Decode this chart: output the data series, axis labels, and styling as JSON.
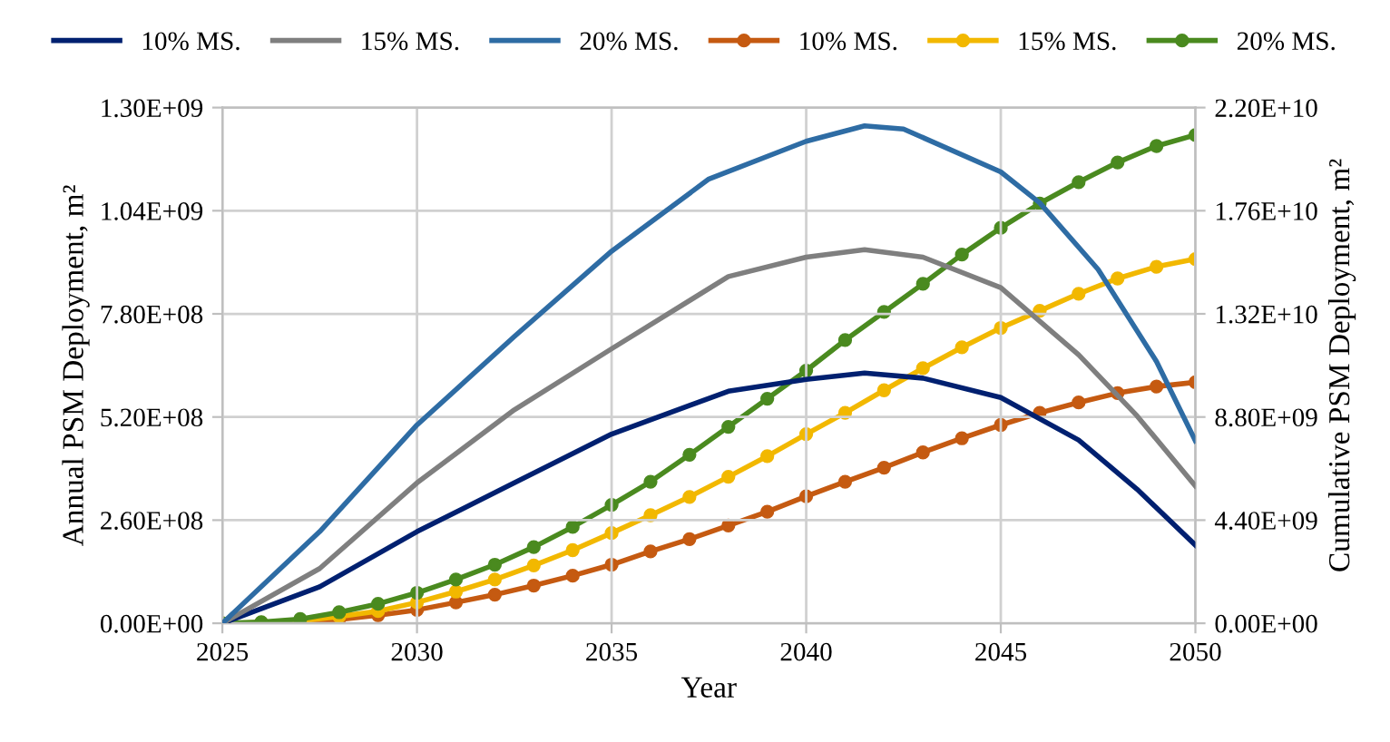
{
  "chart_data": {
    "type": "line",
    "xlabel": "Year",
    "ylabel": "Annual PSM Deployment, m²",
    "y2label": "Cumulative PSM Deployment, m²",
    "xlim": [
      2025,
      2050
    ],
    "xticks": [
      2025,
      2030,
      2035,
      2040,
      2045,
      2050
    ],
    "ylim": [
      0,
      1300000000
    ],
    "yticks": [
      {
        "value": 0,
        "label": "0.00E+00"
      },
      {
        "value": 260000000,
        "label": "2.60E+08"
      },
      {
        "value": 520000000,
        "label": "5.20E+08"
      },
      {
        "value": 780000000,
        "label": "7.80E+08"
      },
      {
        "value": 1040000000,
        "label": "1.04E+09"
      },
      {
        "value": 1300000000,
        "label": "1.30E+09"
      }
    ],
    "y2lim": [
      0,
      22000000000
    ],
    "y2ticks": [
      {
        "value": 0,
        "label": "0.00E+00"
      },
      {
        "value": 4400000000,
        "label": "4.40E+09"
      },
      {
        "value": 8800000000,
        "label": "8.80E+09"
      },
      {
        "value": 13200000000,
        "label": "1.32E+10"
      },
      {
        "value": 17600000000,
        "label": "1.76E+10"
      },
      {
        "value": 22000000000,
        "label": "2.20E+10"
      }
    ],
    "grid": true,
    "legend": "top",
    "series": [
      {
        "name": "10% MS.",
        "color": "#002070",
        "x": [
          2025,
          2027.5,
          2030,
          2032.5,
          2035,
          2038,
          2040,
          2041.5,
          2043,
          2045,
          2047,
          2048.5,
          2050
        ],
        "values": [
          0,
          92000000,
          231000000,
          354000000,
          477000000,
          585000000,
          615000000,
          631000000,
          618000000,
          569000000,
          462000000,
          338000000,
          197000000
        ]
      },
      {
        "name": "15% MS.",
        "color": "#7f7f7f",
        "x": [
          2025,
          2027.5,
          2030,
          2032.5,
          2035,
          2038,
          2040,
          2041.5,
          2043,
          2045,
          2047,
          2048.5,
          2050
        ],
        "values": [
          0,
          138000000,
          354000000,
          538000000,
          692000000,
          874000000,
          923000000,
          942000000,
          923000000,
          846000000,
          677000000,
          523000000,
          346000000
        ]
      },
      {
        "name": "20% MS.",
        "color": "#2e6ca4",
        "x": [
          2025,
          2027.5,
          2030,
          2032.5,
          2035,
          2037.5,
          2040,
          2041.5,
          2042.5,
          2045,
          2046,
          2047.5,
          2049,
          2050
        ],
        "values": [
          0,
          231000000,
          500000000,
          723000000,
          938000000,
          1120000000,
          1215000000,
          1254000000,
          1246000000,
          1138000000,
          1060000000,
          892000000,
          660000000,
          460000000
        ]
      },
      {
        "name": "10% MS.",
        "color": "#c55a11",
        "axis": "y2",
        "marker": "circle",
        "x": [
          2025,
          2026,
          2027,
          2028,
          2029,
          2030,
          2031,
          2032,
          2033,
          2034,
          2035,
          2036,
          2037,
          2038,
          2039,
          2040,
          2041,
          2042,
          2043,
          2044,
          2045,
          2046,
          2047,
          2048,
          2049,
          2050
        ],
        "values": [
          0,
          20000000,
          50000000,
          160000000,
          340000000,
          570000000,
          890000000,
          1220000000,
          1610000000,
          2030000000,
          2500000000,
          3070000000,
          3590000000,
          4170000000,
          4760000000,
          5420000000,
          6040000000,
          6640000000,
          7290000000,
          7890000000,
          8460000000,
          8980000000,
          9420000000,
          9820000000,
          10100000000,
          10280000000
        ]
      },
      {
        "name": "15% MS.",
        "color": "#f2b800",
        "axis": "y2",
        "marker": "circle",
        "x": [
          2025,
          2026,
          2027,
          2028,
          2029,
          2030,
          2031,
          2032,
          2033,
          2034,
          2035,
          2036,
          2037,
          2038,
          2039,
          2040,
          2041,
          2042,
          2043,
          2044,
          2045,
          2046,
          2047,
          2048,
          2049,
          2050
        ],
        "values": [
          0,
          30000000,
          100000000,
          290000000,
          520000000,
          890000000,
          1350000000,
          1870000000,
          2470000000,
          3120000000,
          3850000000,
          4610000000,
          5390000000,
          6250000000,
          7130000000,
          8070000000,
          8980000000,
          9940000000,
          10880000000,
          11770000000,
          12600000000,
          13330000000,
          14060000000,
          14710000000,
          15210000000,
          15540000000
        ]
      },
      {
        "name": "20% MS.",
        "color": "#4a8a1f",
        "axis": "y2",
        "marker": "circle",
        "x": [
          2025,
          2026,
          2027,
          2028,
          2029,
          2030,
          2031,
          2032,
          2033,
          2034,
          2035,
          2036,
          2037,
          2038,
          2039,
          2040,
          2041,
          2042,
          2043,
          2044,
          2045,
          2046,
          2047,
          2048,
          2049,
          2050
        ],
        "values": [
          0,
          50000000,
          180000000,
          470000000,
          830000000,
          1300000000,
          1870000000,
          2500000000,
          3250000000,
          4110000000,
          5050000000,
          6040000000,
          7190000000,
          8380000000,
          9580000000,
          10780000000,
          12080000000,
          13280000000,
          14480000000,
          15730000000,
          16870000000,
          17910000000,
          18820000000,
          19660000000,
          20360000000,
          20830000000
        ]
      }
    ]
  }
}
